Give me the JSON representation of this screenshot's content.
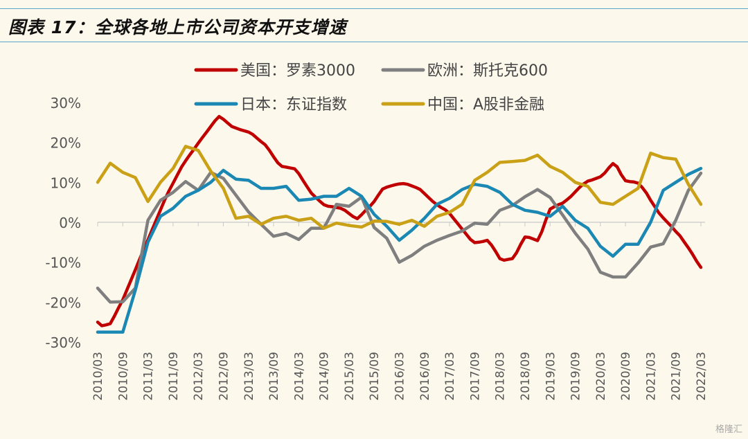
{
  "title": "图表 17：全球各地上市公司资本开支增速",
  "watermark": "格隆汇",
  "chart_data": {
    "type": "line",
    "title": "图表 17：全球各地上市公司资本开支增速",
    "xlabel": "",
    "ylabel": "",
    "ylim": [
      -30,
      30
    ],
    "y_ticks": [
      "30%",
      "20%",
      "10%",
      "0%",
      "-10%",
      "-20%",
      "-30%"
    ],
    "y_tick_values": [
      30,
      20,
      10,
      0,
      -10,
      -20,
      -30
    ],
    "x_tick_labels": [
      "2010/03",
      "2010/09",
      "2011/03",
      "2011/09",
      "2012/03",
      "2012/09",
      "2013/03",
      "2013/09",
      "2014/03",
      "2014/09",
      "2015/03",
      "2015/09",
      "2016/03",
      "2016/09",
      "2017/03",
      "2017/09",
      "2018/03",
      "2018/09",
      "2019/03",
      "2019/09",
      "2020/03",
      "2020/09",
      "2021/03",
      "2021/09",
      "2022/03"
    ],
    "x_start": "2010-03",
    "x_step_months": 1,
    "grid": false,
    "legend_position": "top",
    "series": [
      {
        "name": "美国：罗素3000",
        "color": "#c00000",
        "monthly_x": [
          0,
          1,
          2,
          3,
          4,
          5,
          6,
          7,
          8,
          9,
          10,
          11,
          12,
          13,
          14,
          15,
          16,
          17,
          18,
          19,
          20,
          21,
          22,
          23,
          24,
          25,
          26,
          27,
          28,
          29,
          30,
          31,
          32,
          33,
          34,
          35,
          36,
          37,
          38,
          39,
          40,
          41,
          42,
          43,
          44,
          45,
          46,
          47,
          48,
          49,
          50,
          51,
          52,
          53,
          54,
          55,
          56,
          57,
          58,
          59,
          60,
          61,
          62,
          63,
          64,
          65,
          66,
          67,
          68,
          69,
          70,
          71,
          72,
          73,
          74,
          75,
          76,
          77,
          78,
          79,
          80,
          81,
          82,
          83,
          84,
          85,
          86,
          87,
          88,
          89,
          90,
          91,
          92,
          93,
          94,
          95,
          96,
          97,
          98,
          99,
          100,
          101,
          102,
          103,
          104,
          105,
          106,
          107,
          108,
          109,
          110,
          111,
          112,
          113,
          114,
          115,
          116,
          117,
          118,
          119,
          120,
          121,
          122,
          123,
          124,
          125,
          126,
          127,
          128,
          129,
          130,
          131,
          132,
          133,
          134,
          135,
          136,
          137,
          138,
          139,
          140,
          141,
          142,
          143,
          144
        ],
        "values": [
          -25,
          -25.9,
          -25.7,
          -25.4,
          -23.5,
          -21.4,
          -19.4,
          -16.9,
          -14.4,
          -11.9,
          -9.3,
          -6.8,
          -4.4,
          -1.9,
          0.6,
          3.1,
          5.6,
          7.8,
          9.8,
          11.8,
          13.8,
          15.4,
          16.9,
          18.3,
          19.8,
          21.2,
          22.6,
          24,
          25.4,
          26.5,
          25.8,
          24.9,
          24,
          23.6,
          23.2,
          22.9,
          22.6,
          22,
          21.1,
          20.2,
          19.4,
          18,
          16.4,
          14.9,
          14,
          13.8,
          13.6,
          13.4,
          12.2,
          10.5,
          8.9,
          7.3,
          6.3,
          5.3,
          4.4,
          4,
          3.9,
          3.7,
          3.5,
          3,
          2.2,
          1.4,
          0.9,
          1.9,
          3,
          4,
          5.2,
          6.8,
          8.3,
          8.8,
          9.1,
          9.4,
          9.6,
          9.7,
          9.5,
          9.1,
          8.7,
          8.2,
          7.2,
          6.2,
          5.2,
          4.4,
          3.7,
          3.1,
          2.2,
          0.9,
          -0.4,
          -1.7,
          -3,
          -4.3,
          -5.1,
          -5,
          -4.8,
          -4.5,
          -5.7,
          -7.3,
          -9.1,
          -9.5,
          -9.3,
          -9.1,
          -7.6,
          -5.5,
          -3.7,
          -3.8,
          -4.2,
          -4.6,
          -2.4,
          0.6,
          3.3,
          3.9,
          4.4,
          4.8,
          5.6,
          6.5,
          7.6,
          8.7,
          9.6,
          10.3,
          10.6,
          11,
          11.4,
          12.3,
          13.6,
          14.7,
          13.9,
          11.9,
          10.4,
          10.2,
          10.1,
          9.8,
          8.7,
          7.3,
          5.5,
          3.9,
          2.3,
          1.1,
          0,
          -1.1,
          -2.3,
          -3.4,
          -4.9,
          -6.4,
          -8,
          -9.8,
          -11.3
        ]
      },
      {
        "name": "欧洲：斯托克600",
        "color": "#7f7f7f",
        "monthly_x": [
          0,
          3,
          6,
          9,
          12,
          15,
          18,
          21,
          24,
          27,
          30,
          33,
          36,
          39,
          42,
          45,
          48,
          51,
          54,
          57,
          60,
          63,
          66,
          69,
          72,
          75,
          78,
          81,
          84,
          87,
          90,
          93,
          96,
          99,
          102,
          105,
          108,
          111,
          114,
          117,
          120,
          123,
          126,
          129,
          132,
          135,
          138,
          141,
          144
        ],
        "values": [
          -16.5,
          -20,
          -19.9,
          -16.5,
          0.5,
          5.5,
          7.5,
          10.2,
          8,
          12.5,
          11,
          6.8,
          2.6,
          -0.5,
          -3.5,
          -2.8,
          -4.3,
          -1.5,
          -1.5,
          4.5,
          4,
          6.3,
          -1.3,
          -4,
          -10,
          -8.3,
          -6,
          -4.5,
          -3.3,
          -2.2,
          -0.2,
          -0.5,
          3,
          4.2,
          6.4,
          8.2,
          6.2,
          1.8,
          -2.7,
          -6.7,
          -12.5,
          -13.7,
          -13.7,
          -10.2,
          -6.2,
          -5.4,
          0.5,
          8,
          12.3
        ]
      },
      {
        "name": "日本：东证指数",
        "color": "#1b88b4",
        "monthly_x": [
          0,
          3,
          6,
          9,
          12,
          15,
          18,
          21,
          24,
          27,
          30,
          33,
          36,
          39,
          42,
          45,
          48,
          51,
          54,
          57,
          60,
          63,
          66,
          69,
          72,
          75,
          78,
          81,
          84,
          87,
          90,
          93,
          96,
          99,
          102,
          105,
          108,
          111,
          114,
          117,
          120,
          123,
          126,
          129,
          132,
          135,
          138,
          141,
          144
        ],
        "values": [
          -27.5,
          -27.5,
          -27.5,
          -17,
          -5,
          1.5,
          3.5,
          6.5,
          8,
          10,
          13,
          10.8,
          10.5,
          8.5,
          8.5,
          9,
          5.5,
          5.8,
          6.5,
          6.5,
          8.5,
          6.5,
          2,
          -1,
          -4.5,
          -2,
          1,
          4.5,
          6,
          8.2,
          9.5,
          9,
          7.5,
          4.5,
          3,
          2.5,
          1.5,
          4,
          0.5,
          -1.5,
          -6,
          -8.5,
          -5.5,
          -5.5,
          0,
          8,
          10,
          12,
          13.5
        ]
      },
      {
        "name": "中国：A股非金融",
        "color": "#c9a016",
        "monthly_x": [
          0,
          3,
          6,
          9,
          12,
          15,
          18,
          21,
          24,
          27,
          30,
          33,
          36,
          39,
          42,
          45,
          48,
          51,
          54,
          57,
          60,
          63,
          66,
          69,
          72,
          75,
          78,
          81,
          84,
          87,
          90,
          93,
          96,
          99,
          102,
          105,
          108,
          111,
          114,
          117,
          120,
          123,
          126,
          129,
          132,
          135,
          138,
          141,
          144
        ],
        "values": [
          10,
          14.8,
          12.5,
          11.2,
          5.2,
          10,
          13.5,
          19,
          18,
          12.8,
          8.5,
          1,
          1.5,
          -0.5,
          1,
          1.5,
          0.5,
          1,
          -1.5,
          -0.2,
          -0.8,
          -1.2,
          0.3,
          0.2,
          -0.5,
          0.5,
          -1,
          1.5,
          2.5,
          4.5,
          10.5,
          12.5,
          15,
          15.2,
          15.5,
          16.8,
          14,
          12.5,
          10,
          9,
          5,
          4.5,
          6.5,
          8.5,
          17.3,
          16.2,
          15.8,
          9.5,
          4.5
        ]
      }
    ],
    "x_extended_note": ""
  }
}
